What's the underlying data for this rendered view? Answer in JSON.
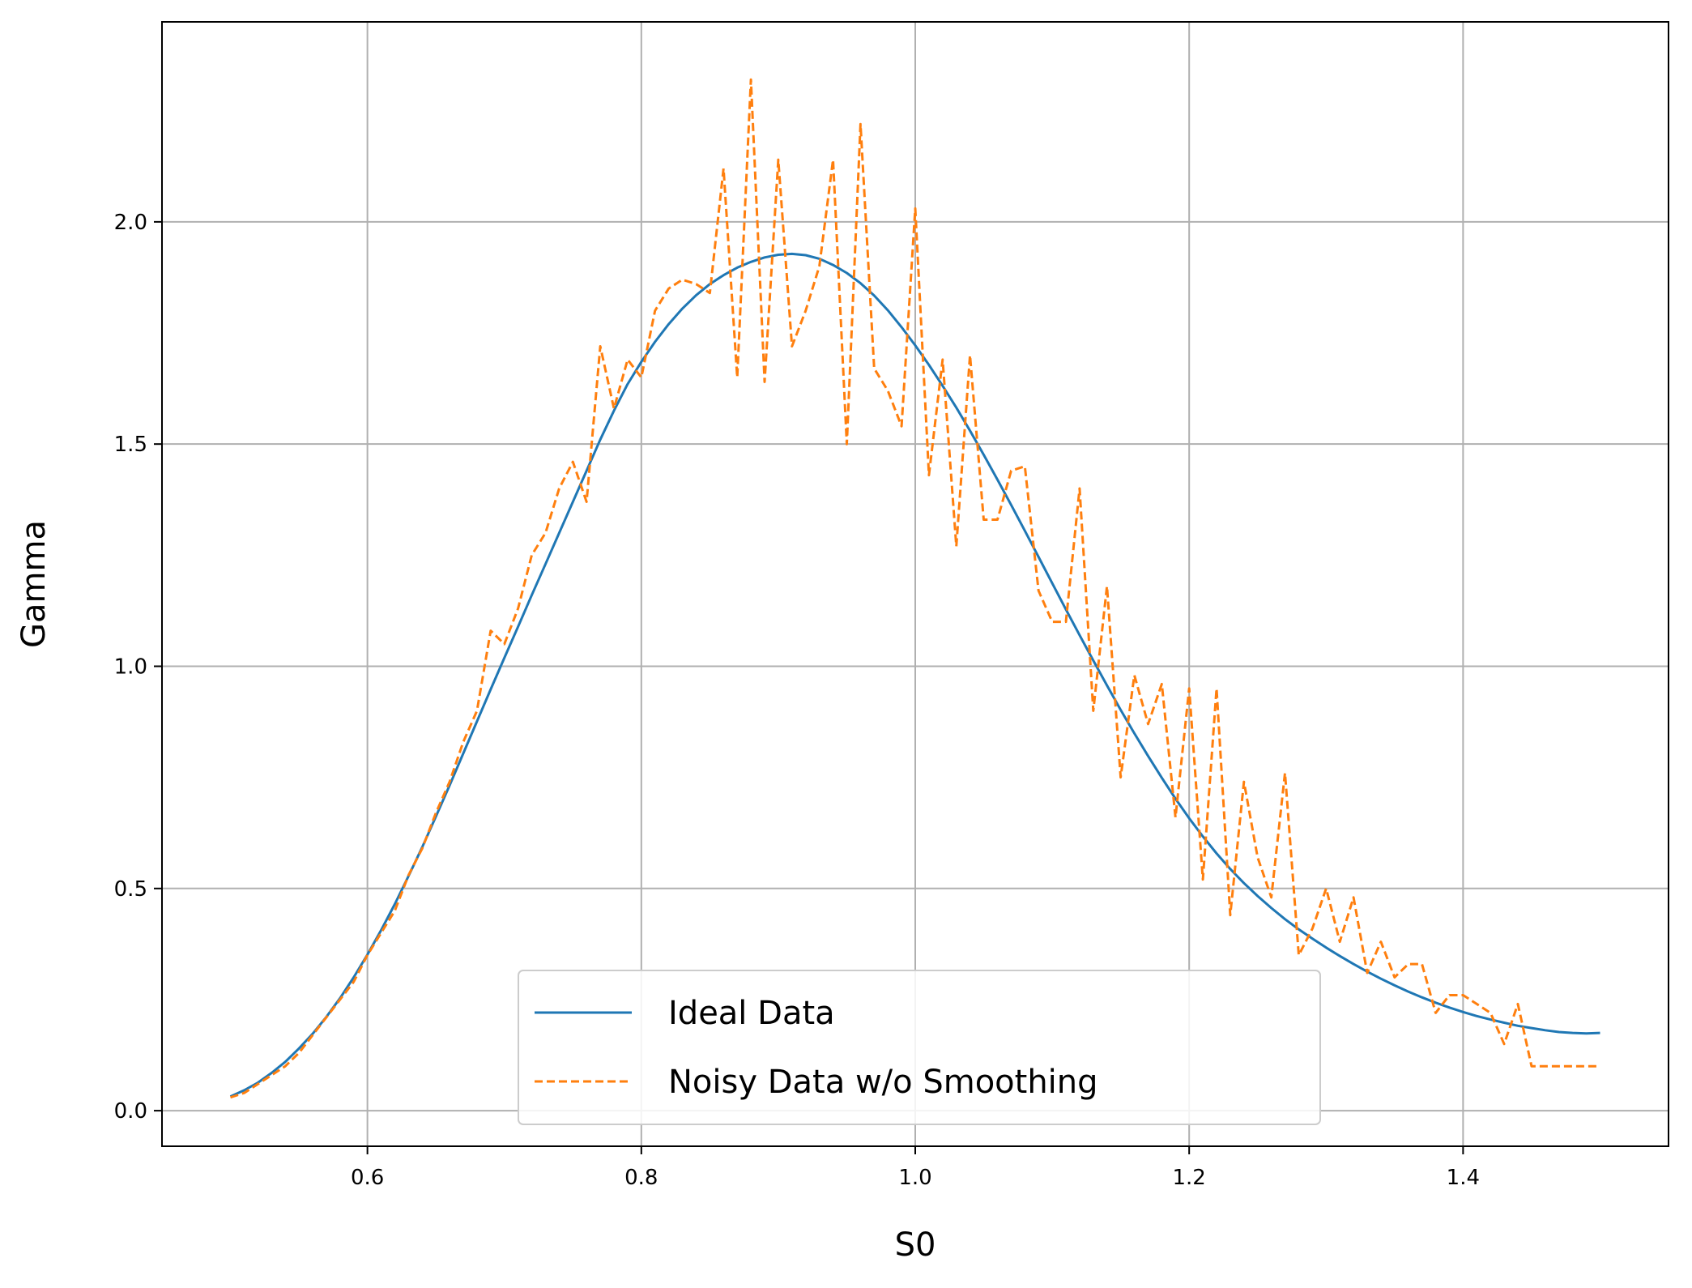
{
  "chart_data": {
    "type": "line",
    "xlabel": "S0",
    "ylabel": "Gamma",
    "xlim": [
      0.45,
      1.55
    ],
    "ylim": [
      -0.08,
      2.45
    ],
    "xticks": [
      0.6,
      0.8,
      1.0,
      1.2,
      1.4
    ],
    "xtick_labels": [
      "0.6",
      "0.8",
      "1.0",
      "1.2",
      "1.4"
    ],
    "yticks": [
      0.0,
      0.5,
      1.0,
      1.5,
      2.0
    ],
    "ytick_labels": [
      "0.0",
      "0.5",
      "1.0",
      "1.5",
      "2.0"
    ],
    "grid": true,
    "legend_position": "bottom-center",
    "x": [
      0.5,
      0.51,
      0.52,
      0.53,
      0.54,
      0.55,
      0.56,
      0.57,
      0.58,
      0.59,
      0.6,
      0.61,
      0.62,
      0.63,
      0.64,
      0.65,
      0.66,
      0.67,
      0.68,
      0.69,
      0.7,
      0.71,
      0.72,
      0.73,
      0.74,
      0.75,
      0.76,
      0.77,
      0.78,
      0.79,
      0.8,
      0.81,
      0.82,
      0.83,
      0.84,
      0.85,
      0.86,
      0.87,
      0.88,
      0.89,
      0.9,
      0.91,
      0.92,
      0.93,
      0.94,
      0.95,
      0.96,
      0.97,
      0.98,
      0.99,
      1.0,
      1.01,
      1.02,
      1.03,
      1.04,
      1.05,
      1.06,
      1.07,
      1.08,
      1.09,
      1.1,
      1.11,
      1.12,
      1.13,
      1.14,
      1.15,
      1.16,
      1.17,
      1.18,
      1.19,
      1.2,
      1.21,
      1.22,
      1.23,
      1.24,
      1.25,
      1.26,
      1.27,
      1.28,
      1.29,
      1.3,
      1.31,
      1.32,
      1.33,
      1.34,
      1.35,
      1.36,
      1.37,
      1.38,
      1.39,
      1.4,
      1.41,
      1.42,
      1.43,
      1.44,
      1.45,
      1.46,
      1.47,
      1.48,
      1.49,
      1.5
    ],
    "series": [
      {
        "name": "Ideal Data",
        "color": "#1f77b4",
        "style": "solid",
        "values": [
          0.032,
          0.046,
          0.063,
          0.085,
          0.11,
          0.14,
          0.173,
          0.211,
          0.253,
          0.3,
          0.351,
          0.406,
          0.465,
          0.528,
          0.593,
          0.662,
          0.732,
          0.804,
          0.876,
          0.948,
          1.019,
          1.089,
          1.16,
          1.23,
          1.3,
          1.37,
          1.44,
          1.51,
          1.575,
          1.635,
          1.685,
          1.73,
          1.77,
          1.805,
          1.835,
          1.86,
          1.88,
          1.897,
          1.91,
          1.92,
          1.926,
          1.928,
          1.925,
          1.917,
          1.903,
          1.885,
          1.862,
          1.834,
          1.801,
          1.763,
          1.722,
          1.678,
          1.631,
          1.582,
          1.53,
          1.476,
          1.42,
          1.363,
          1.305,
          1.246,
          1.187,
          1.128,
          1.07,
          1.013,
          0.957,
          0.902,
          0.849,
          0.798,
          0.749,
          0.702,
          0.658,
          0.617,
          0.579,
          0.544,
          0.512,
          0.483,
          0.456,
          0.431,
          0.408,
          0.387,
          0.367,
          0.348,
          0.33,
          0.313,
          0.297,
          0.282,
          0.268,
          0.255,
          0.243,
          0.232,
          0.222,
          0.213,
          0.205,
          0.198,
          0.191,
          0.186,
          0.181,
          0.177,
          0.175,
          0.174,
          0.175
        ]
      },
      {
        "name": "Noisy Data w/o Smoothing",
        "color": "#ff7f0e",
        "style": "dashed",
        "values": [
          0.03,
          0.04,
          0.06,
          0.08,
          0.1,
          0.13,
          0.17,
          0.21,
          0.25,
          0.29,
          0.35,
          0.4,
          0.45,
          0.53,
          0.59,
          0.67,
          0.74,
          0.83,
          0.9,
          1.08,
          1.05,
          1.13,
          1.25,
          1.3,
          1.4,
          1.46,
          1.37,
          1.72,
          1.58,
          1.69,
          1.65,
          1.8,
          1.85,
          1.87,
          1.86,
          1.84,
          2.12,
          1.65,
          2.32,
          1.64,
          2.14,
          1.72,
          1.8,
          1.9,
          2.14,
          1.5,
          2.22,
          1.67,
          1.62,
          1.54,
          2.03,
          1.43,
          1.69,
          1.27,
          1.7,
          1.33,
          1.33,
          1.44,
          1.45,
          1.17,
          1.1,
          1.1,
          1.4,
          0.9,
          1.18,
          0.75,
          0.98,
          0.87,
          0.96,
          0.66,
          0.95,
          0.52,
          0.95,
          0.44,
          0.74,
          0.57,
          0.48,
          0.76,
          0.35,
          0.41,
          0.5,
          0.38,
          0.48,
          0.31,
          0.38,
          0.3,
          0.33,
          0.33,
          0.22,
          0.26,
          0.26,
          0.24,
          0.22,
          0.15,
          0.24,
          0.1,
          0.1,
          0.1,
          0.1,
          0.1,
          0.1
        ]
      }
    ]
  }
}
